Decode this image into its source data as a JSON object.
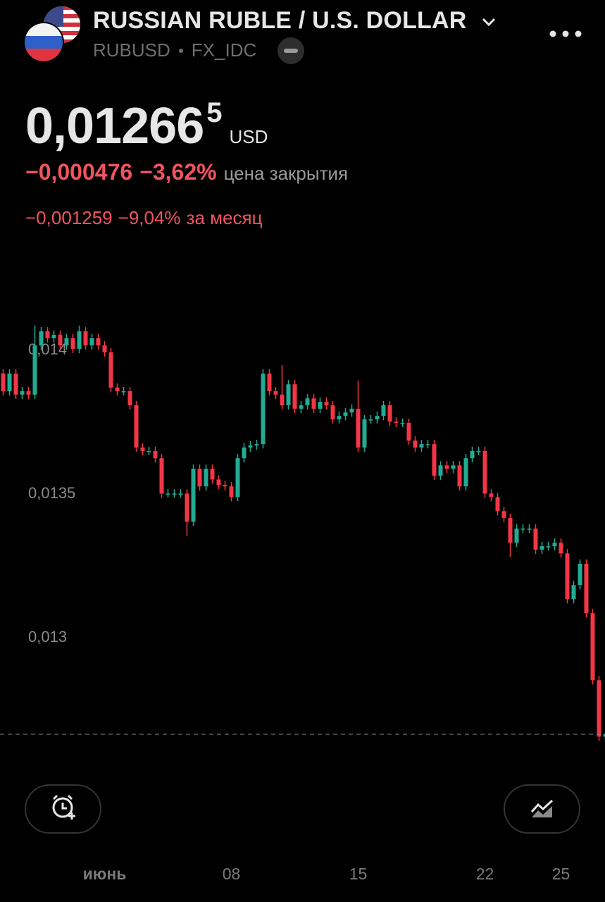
{
  "header": {
    "title": "RUSSIAN RUBLE / U.S. DOLLAR",
    "symbol": "RUBUSD",
    "exchange": "FX_IDC",
    "price": "0,01266",
    "price_last_digit": "5",
    "currency": "USD",
    "change": "−0,000476",
    "change_percent": "−3,62%",
    "change_note": "цена закрытия",
    "month_change": "−0,001259",
    "month_change_percent": "−9,04%",
    "month_note": "за месяц"
  },
  "chart_data": {
    "type": "candlestick",
    "up_color": "#22ab94",
    "down_color": "#f23645",
    "categories": [
      null,
      null,
      null,
      null,
      null,
      null,
      null,
      null,
      null,
      null,
      null,
      null,
      null,
      null,
      null,
      null,
      "июнь",
      null,
      null,
      null,
      null,
      null,
      null,
      null,
      null,
      null,
      null,
      null,
      null,
      null,
      null,
      null,
      null,
      null,
      null,
      null,
      "08",
      null,
      null,
      null,
      null,
      null,
      null,
      null,
      null,
      null,
      null,
      null,
      null,
      null,
      null,
      null,
      null,
      null,
      null,
      null,
      "15",
      null,
      null,
      null,
      null,
      null,
      null,
      null,
      null,
      null,
      null,
      null,
      null,
      null,
      null,
      null,
      null,
      null,
      null,
      null,
      "22",
      null,
      null,
      null,
      null,
      null,
      null,
      null,
      null,
      null,
      null,
      null,
      "25",
      null,
      null,
      null,
      null,
      null,
      null,
      null
    ],
    "open": [
      0.013919,
      0.013858,
      0.013919,
      0.013846,
      0.013858,
      0.013846,
      0.014017,
      0.014066,
      0.014042,
      0.014054,
      0.014017,
      0.014042,
      0.014005,
      0.014066,
      0.014017,
      0.014042,
      0.014017,
      0.013993,
      0.01387,
      0.013858,
      0.013858,
      0.013809,
      0.013662,
      0.01365,
      0.01365,
      0.013625,
      0.013502,
      0.013502,
      0.013502,
      0.013502,
      0.013404,
      0.013588,
      0.013527,
      0.013588,
      0.013551,
      0.013532,
      0.013527,
      0.01349,
      0.013625,
      0.013662,
      0.013669,
      0.013674,
      0.013919,
      0.013858,
      0.013846,
      0.013809,
      0.013882,
      0.013797,
      0.013809,
      0.013833,
      0.013797,
      0.013821,
      0.013809,
      0.01376,
      0.013772,
      0.013784,
      0.013797,
      0.013662,
      0.01376,
      0.01376,
      0.013772,
      0.013809,
      0.013752,
      0.013748,
      0.013748,
      0.013686,
      0.013662,
      0.013674,
      0.013674,
      0.013564,
      0.0136,
      0.013588,
      0.0136,
      0.013527,
      0.013625,
      0.01365,
      0.01365,
      0.013502,
      0.01349,
      0.013441,
      0.013417,
      0.013331,
      0.01338,
      0.01338,
      0.01338,
      0.013307,
      0.013319,
      0.013319,
      0.013331,
      0.013294,
      0.013135,
      0.013184,
      0.013258,
      0.013086,
      0.012853,
      0.012657
    ],
    "high": [
      0.013934,
      0.013934,
      0.013934,
      0.013873,
      0.013873,
      0.014086,
      0.014081,
      0.014081,
      0.014069,
      0.014069,
      0.014057,
      0.014057,
      0.014086,
      0.014081,
      0.014057,
      0.014057,
      0.014032,
      0.014008,
      0.013885,
      0.013873,
      0.013873,
      0.013824,
      0.013677,
      0.013665,
      0.013665,
      0.01364,
      0.013517,
      0.013517,
      0.013517,
      0.013517,
      0.013603,
      0.013603,
      0.013603,
      0.013603,
      0.013566,
      0.013547,
      0.013542,
      0.01364,
      0.013677,
      0.013684,
      0.013689,
      0.013934,
      0.013934,
      0.013873,
      0.013949,
      0.013897,
      0.013897,
      0.013824,
      0.013848,
      0.013848,
      0.013836,
      0.013836,
      0.013824,
      0.013787,
      0.013799,
      0.013812,
      0.013895,
      0.013775,
      0.013775,
      0.013787,
      0.013824,
      0.013824,
      0.013767,
      0.013763,
      0.013763,
      0.013701,
      0.013689,
      0.013689,
      0.013689,
      0.013615,
      0.013615,
      0.013615,
      0.013615,
      0.01364,
      0.013665,
      0.013665,
      0.013665,
      0.013517,
      0.013505,
      0.013456,
      0.013432,
      0.013395,
      0.013395,
      0.013395,
      0.013395,
      0.013334,
      0.013334,
      0.013346,
      0.013346,
      0.013309,
      0.013199,
      0.013273,
      0.013273,
      0.013101,
      0.012868,
      0.012672
    ],
    "low": [
      0.013843,
      0.013843,
      0.013831,
      0.013831,
      0.013831,
      0.013831,
      0.014002,
      0.014027,
      0.014027,
      0.014002,
      0.014002,
      0.01399,
      0.01399,
      0.014002,
      0.014002,
      0.014002,
      0.013978,
      0.013855,
      0.013843,
      0.013843,
      0.013794,
      0.013647,
      0.013635,
      0.013635,
      0.01361,
      0.013487,
      0.013487,
      0.013487,
      0.013487,
      0.013355,
      0.013389,
      0.013512,
      0.013512,
      0.013536,
      0.013517,
      0.013512,
      0.013475,
      0.013475,
      0.01361,
      0.013647,
      0.013654,
      0.013659,
      0.013843,
      0.013831,
      0.013794,
      0.013794,
      0.013782,
      0.013782,
      0.013794,
      0.013782,
      0.013782,
      0.013794,
      0.013745,
      0.013745,
      0.013757,
      0.013769,
      0.013647,
      0.013647,
      0.013745,
      0.013745,
      0.013757,
      0.013737,
      0.013733,
      0.013733,
      0.013671,
      0.013647,
      0.013647,
      0.013659,
      0.013549,
      0.013549,
      0.013573,
      0.013573,
      0.013512,
      0.013512,
      0.01361,
      0.013635,
      0.013487,
      0.013475,
      0.013426,
      0.013402,
      0.013282,
      0.013316,
      0.013365,
      0.013365,
      0.013292,
      0.013292,
      0.013304,
      0.013304,
      0.013279,
      0.01312,
      0.01312,
      0.013169,
      0.013071,
      0.012838,
      0.012642,
      0.012642
    ],
    "close": [
      0.013858,
      0.013919,
      0.013846,
      0.013858,
      0.013846,
      0.014017,
      0.014066,
      0.014042,
      0.014054,
      0.014017,
      0.014042,
      0.014005,
      0.014066,
      0.014017,
      0.014042,
      0.014017,
      0.013993,
      0.01387,
      0.013858,
      0.013858,
      0.013809,
      0.013662,
      0.01365,
      0.01365,
      0.013625,
      0.013502,
      0.013502,
      0.013502,
      0.013502,
      0.013404,
      0.013588,
      0.013527,
      0.013588,
      0.013551,
      0.013532,
      0.013527,
      0.01349,
      0.013625,
      0.013662,
      0.013669,
      0.013674,
      0.013919,
      0.013858,
      0.013846,
      0.013809,
      0.013882,
      0.013797,
      0.013809,
      0.013833,
      0.013797,
      0.013821,
      0.013809,
      0.01376,
      0.013772,
      0.013784,
      0.013797,
      0.013662,
      0.01376,
      0.01376,
      0.013772,
      0.013809,
      0.013752,
      0.013748,
      0.013748,
      0.013686,
      0.013662,
      0.013674,
      0.013674,
      0.013564,
      0.0136,
      0.013588,
      0.0136,
      0.013527,
      0.013625,
      0.01365,
      0.01365,
      0.013502,
      0.01349,
      0.013441,
      0.013417,
      0.013331,
      0.01338,
      0.01338,
      0.01338,
      0.013307,
      0.013319,
      0.013319,
      0.013331,
      0.013294,
      0.013135,
      0.013184,
      0.013258,
      0.013086,
      0.012853,
      0.012657,
      0.012665
    ],
    "ylim": [
      0.012621,
      0.01414
    ],
    "yticks": [
      {
        "value": 0.013,
        "label": "0,013"
      },
      {
        "value": 0.0135,
        "label": "0,0135"
      },
      {
        "value": 0.014,
        "label": "0,014"
      }
    ]
  }
}
